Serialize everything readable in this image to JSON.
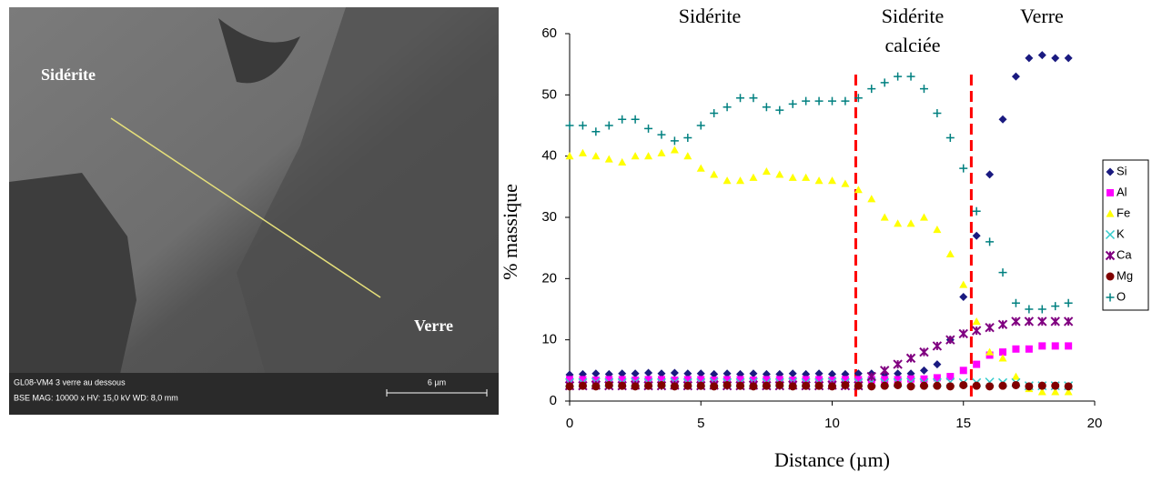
{
  "image": {
    "labels": [
      "Sidérite",
      "Verre"
    ],
    "footer": [
      "GL08-VM4 3  verre au dessous",
      "BSE  MAG: 10000 x  HV: 15,0 kV  WD: 8,0 mm"
    ],
    "scale": "6 µm"
  },
  "chart_data": {
    "type": "scatter",
    "annotations": [
      [
        "Sidérite"
      ],
      [
        "Sidérite",
        "calciée"
      ],
      [
        "Verre"
      ]
    ],
    "xlabel": "Distance (µm)",
    "ylabel": "% massique",
    "xlim": [
      0,
      20
    ],
    "xticks": [
      0,
      5,
      10,
      15,
      20
    ],
    "ylim": [
      0,
      60
    ],
    "yticks": [
      0,
      10,
      20,
      30,
      40,
      50,
      60
    ],
    "grid": false,
    "legend": "right",
    "vlines": [
      10.9,
      15.3
    ],
    "vline_color": "#ff0000",
    "x": [
      0,
      0.5,
      1,
      1.5,
      2,
      2.5,
      3,
      3.5,
      4,
      4.5,
      5,
      5.5,
      6,
      6.5,
      7,
      7.5,
      8,
      8.5,
      9,
      9.5,
      10,
      10.5,
      11,
      11.5,
      12,
      12.5,
      13,
      13.5,
      14,
      14.5,
      15,
      15.5,
      16,
      16.5,
      17,
      17.5,
      18,
      18.5,
      19
    ],
    "series": [
      {
        "name": "Si",
        "color": "#1a1a80",
        "marker": "diamond",
        "values": [
          4.3,
          4.4,
          4.5,
          4.4,
          4.5,
          4.5,
          4.6,
          4.5,
          4.6,
          4.5,
          4.5,
          4.4,
          4.5,
          4.4,
          4.5,
          4.4,
          4.4,
          4.5,
          4.4,
          4.5,
          4.4,
          4.4,
          4.5,
          4.5,
          4.4,
          4.5,
          4.5,
          5,
          6,
          10,
          17,
          27,
          37,
          46,
          53,
          56,
          56.5,
          56,
          56
        ]
      },
      {
        "name": "Al",
        "color": "#ff00ff",
        "marker": "square",
        "values": [
          3.5,
          3.5,
          3.4,
          3.5,
          3.5,
          3.4,
          3.5,
          3.5,
          3.4,
          3.5,
          3.5,
          3.4,
          3.5,
          3.5,
          3.4,
          3.5,
          3.5,
          3.4,
          3.5,
          3.5,
          3.4,
          3.5,
          3.5,
          3.5,
          3.5,
          3.5,
          3.6,
          3.6,
          3.8,
          4,
          5,
          6,
          7.5,
          8,
          8.5,
          8.5,
          9,
          9,
          9
        ]
      },
      {
        "name": "Fe",
        "color": "#ffff00",
        "marker": "triangle",
        "values": [
          40,
          40.5,
          40,
          39.5,
          39,
          40,
          40,
          40.5,
          41,
          40,
          38,
          37,
          36,
          36,
          36.5,
          37.5,
          37,
          36.5,
          36.5,
          36,
          36,
          35.5,
          34.5,
          33,
          30,
          29,
          29,
          30,
          28,
          24,
          19,
          13,
          8,
          7,
          4,
          2,
          1.5,
          1.5,
          1.5
        ]
      },
      {
        "name": "K",
        "color": "#33cccc",
        "marker": "x",
        "values": [
          3,
          3,
          3.1,
          3,
          3,
          3.1,
          3,
          3,
          3.1,
          3,
          3,
          3.1,
          3,
          3,
          3.1,
          3,
          3,
          3.1,
          3,
          3,
          3.1,
          3,
          3,
          3.1,
          3,
          3,
          3.1,
          3,
          3,
          3.1,
          3,
          3,
          3.1,
          3,
          3,
          2.5,
          2.5,
          2.5,
          2.5
        ]
      },
      {
        "name": "Ca",
        "color": "#800080",
        "marker": "star",
        "values": [
          2.5,
          2.5,
          2.6,
          2.5,
          2.5,
          2.6,
          2.5,
          2.5,
          2.6,
          2.5,
          2.5,
          2.6,
          2.5,
          2.5,
          2.6,
          2.5,
          2.5,
          2.6,
          2.5,
          2.5,
          2.6,
          2.5,
          2.5,
          4,
          5,
          6,
          7,
          8,
          9,
          10,
          11,
          11.5,
          12,
          12.5,
          13,
          13,
          13,
          13,
          13
        ]
      },
      {
        "name": "Mg",
        "color": "#800000",
        "marker": "circle",
        "values": [
          2.4,
          2.5,
          2.4,
          2.6,
          2.5,
          2.4,
          2.5,
          2.6,
          2.4,
          2.5,
          2.5,
          2.4,
          2.6,
          2.5,
          2.4,
          2.5,
          2.6,
          2.4,
          2.5,
          2.5,
          2.4,
          2.6,
          2.5,
          2.4,
          2.5,
          2.6,
          2.4,
          2.5,
          2.5,
          2.4,
          2.6,
          2.5,
          2.4,
          2.5,
          2.6,
          2.4,
          2.5,
          2.5,
          2.4
        ]
      },
      {
        "name": "O",
        "color": "#008080",
        "marker": "plus",
        "values": [
          45,
          45,
          44,
          45,
          46,
          46,
          44.5,
          43.5,
          42.5,
          43,
          45,
          47,
          48,
          49.5,
          49.5,
          48,
          47.5,
          48.5,
          49,
          49,
          49,
          49,
          49.5,
          51,
          52,
          53,
          53,
          51,
          47,
          43,
          38,
          31,
          26,
          21,
          16,
          15,
          15,
          15.5,
          16
        ]
      }
    ]
  }
}
